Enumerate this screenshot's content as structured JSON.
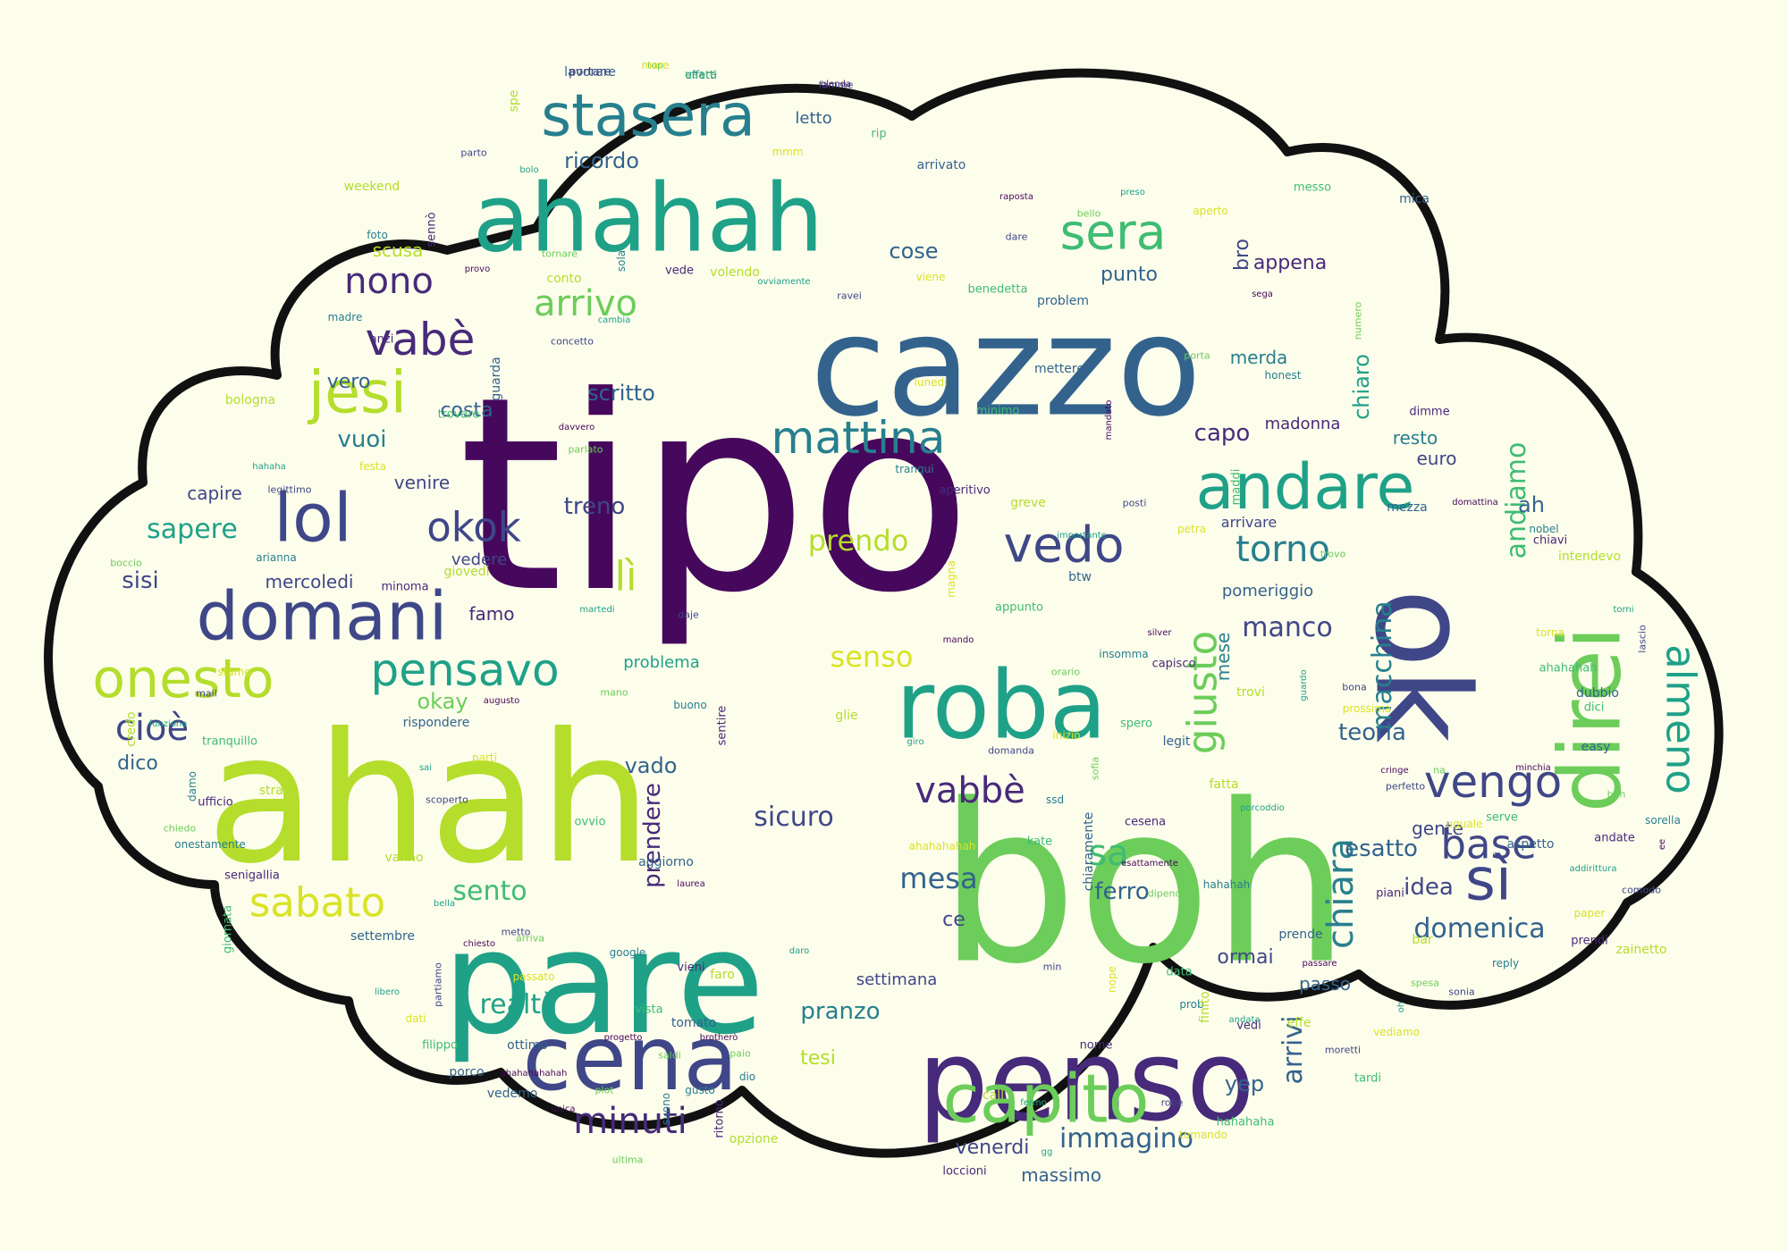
{
  "cloud": {
    "fill": "#fdfdec",
    "outline": "#111111"
  },
  "palette": {
    "p1": "#46085c",
    "p2": "#472a7a",
    "p3": "#3f4788",
    "p4": "#33638d",
    "p5": "#277f8e",
    "p6": "#1fa188",
    "p7": "#3fbc73",
    "p8": "#6ccd5a",
    "p9": "#b4dd2c",
    "p10": "#d9e326"
  },
  "words": [
    {
      "t": "tipo",
      "c": "p1"
    },
    {
      "t": "boh",
      "c": "p8"
    },
    {
      "t": "ahah",
      "c": "p9"
    },
    {
      "t": "cazzo",
      "c": "p4"
    },
    {
      "t": "pare",
      "c": "p6"
    },
    {
      "t": "penso",
      "c": "p2"
    },
    {
      "t": "ahahah",
      "c": "p6"
    },
    {
      "t": "ok",
      "c": "p3"
    },
    {
      "t": "roba",
      "c": "p6"
    },
    {
      "t": "direi",
      "c": "p8"
    },
    {
      "t": "cena",
      "c": "p3"
    },
    {
      "t": "capito",
      "c": "p8"
    },
    {
      "t": "domani",
      "c": "p3"
    },
    {
      "t": "stasera",
      "c": "p5"
    },
    {
      "t": "lol",
      "c": "p3"
    },
    {
      "t": "andare",
      "c": "p6"
    },
    {
      "t": "onesto",
      "c": "p9"
    },
    {
      "t": "sì",
      "c": "p3"
    },
    {
      "t": "vengo",
      "c": "p3"
    },
    {
      "t": "mattina",
      "c": "p5"
    },
    {
      "t": "jesi",
      "c": "p9"
    },
    {
      "t": "pensavo",
      "c": "p6"
    },
    {
      "t": "sera",
      "c": "p7"
    },
    {
      "t": "vedo",
      "c": "p3"
    },
    {
      "t": "vabè",
      "c": "p2"
    },
    {
      "t": "base",
      "c": "p3"
    },
    {
      "t": "okok",
      "c": "p3"
    },
    {
      "t": "minuti",
      "c": "p2"
    },
    {
      "t": "sabato",
      "c": "p10"
    },
    {
      "t": "arrivo",
      "c": "p8"
    },
    {
      "t": "torno",
      "c": "p5"
    },
    {
      "t": "nono",
      "c": "p2"
    },
    {
      "t": "giusto",
      "c": "p8"
    },
    {
      "t": "almeno",
      "c": "p6"
    },
    {
      "t": "lì",
      "c": "p9"
    },
    {
      "t": "vabbè",
      "c": "p2"
    },
    {
      "t": "cioè",
      "c": "p3"
    },
    {
      "t": "sapere",
      "c": "p6"
    },
    {
      "t": "senso",
      "c": "p10"
    },
    {
      "t": "realtà",
      "c": "p6"
    },
    {
      "t": "sa",
      "c": "p7"
    },
    {
      "t": "prendo",
      "c": "p9"
    },
    {
      "t": "mesa",
      "c": "p4"
    },
    {
      "t": "immagino",
      "c": "p4"
    },
    {
      "t": "domenica",
      "c": "p4"
    },
    {
      "t": "chiara",
      "c": "p5"
    },
    {
      "t": "manco",
      "c": "p3"
    },
    {
      "t": "ahahah2",
      "c": "p4"
    },
    {
      "t": "sento",
      "c": "p7"
    },
    {
      "t": "sicuro",
      "c": "p3"
    },
    {
      "t": "macchina",
      "c": "p5"
    },
    {
      "t": "andiamo",
      "c": "p7"
    },
    {
      "t": "vuoi",
      "c": "p5"
    },
    {
      "t": "treno",
      "c": "p3"
    },
    {
      "t": "idea",
      "c": "p3"
    },
    {
      "t": "esatto",
      "c": "p4"
    },
    {
      "t": "prendere",
      "c": "p2"
    },
    {
      "t": "teoria",
      "c": "p4"
    },
    {
      "t": "capo",
      "c": "p2"
    },
    {
      "t": "venerdi",
      "c": "p3"
    },
    {
      "t": "scritto",
      "c": "p4"
    },
    {
      "t": "arrivi",
      "c": "p4"
    },
    {
      "t": "ricordo",
      "c": "p4"
    },
    {
      "t": "tesi",
      "c": "p9"
    },
    {
      "t": "pranzo",
      "c": "p5"
    },
    {
      "t": "okay",
      "c": "p8"
    },
    {
      "t": "ferro",
      "c": "p4"
    },
    {
      "t": "yep",
      "c": "p4"
    },
    {
      "t": "sisi",
      "c": "p3"
    },
    {
      "t": "vado",
      "c": "p4"
    },
    {
      "t": "punto",
      "c": "p4"
    },
    {
      "t": "vero",
      "c": "p4"
    },
    {
      "t": "appena",
      "c": "p2"
    },
    {
      "t": "cose",
      "c": "p4"
    },
    {
      "t": "costa",
      "c": "p4"
    },
    {
      "t": "mese",
      "c": "p5"
    },
    {
      "t": "ormai",
      "c": "p3"
    },
    {
      "t": "ah",
      "c": "p4"
    },
    {
      "t": "settimana",
      "c": "p3"
    },
    {
      "t": "massimo",
      "c": "p4"
    },
    {
      "t": "scusa",
      "c": "p9"
    },
    {
      "t": "dico",
      "c": "p4"
    },
    {
      "t": "mercoledi",
      "c": "p3"
    },
    {
      "t": "venire",
      "c": "p3"
    },
    {
      "t": "capire",
      "c": "p3"
    },
    {
      "t": "famo",
      "c": "p2"
    },
    {
      "t": "problema",
      "c": "p6"
    },
    {
      "t": "chiaro",
      "c": "p6"
    },
    {
      "t": "letto",
      "c": "p4"
    },
    {
      "t": "bro",
      "c": "p3"
    },
    {
      "t": "madonna",
      "c": "p2"
    },
    {
      "t": "merda",
      "c": "p5"
    },
    {
      "t": "vedere",
      "c": "p3"
    },
    {
      "t": "resto",
      "c": "p5"
    },
    {
      "t": "euro",
      "c": "p3"
    },
    {
      "t": "gente",
      "c": "p3"
    },
    {
      "t": "passo",
      "c": "p4"
    },
    {
      "t": "ce",
      "c": "p3"
    },
    {
      "t": "pomeriggio",
      "c": "p4"
    },
    {
      "t": "arrivare",
      "c": "p3"
    }
  ],
  "small_words": [
    "glenda",
    "top",
    "effetti",
    "portare",
    "spe",
    "bolo",
    "parto",
    "mmm",
    "rip",
    "arrivato",
    "raposta",
    "bello",
    "foto",
    "sennò",
    "weekend",
    "preso",
    "dare",
    "aperto",
    "messo",
    "mica",
    "provo",
    "tornare",
    "sola",
    "vede",
    "volendo",
    "ovviamente",
    "ravei",
    "viene",
    "benedetta",
    "problem",
    "sega",
    "numero",
    "madre",
    "anzi",
    "conto",
    "cambia",
    "concetto",
    "lunedi",
    "minimo",
    "mettere",
    "mandato",
    "porta",
    "honest",
    "dimme",
    "bologna",
    "hahaha",
    "legittimo",
    "festa",
    "trovare",
    "guarda",
    "davvero",
    "parlato",
    "tranqui",
    "aperitivo",
    "greve",
    "importante",
    "posti",
    "petra",
    "maddi",
    "mezza",
    "domattina",
    "boccio",
    "arianna",
    "minoma",
    "giovedi",
    "martedi",
    "daje",
    "magna",
    "appunto",
    "btw",
    "silver",
    "trovo",
    "nobel",
    "chiavi",
    "intendevo",
    "torni",
    "lascio",
    "torna",
    "ahahahah",
    "dubbio",
    "mando",
    "orario",
    "insomma",
    "capisco",
    "trovi",
    "guardo",
    "bona",
    "prossima",
    "dici",
    "easy",
    "minchia",
    "beh",
    "sorella",
    "andate",
    "credo",
    "funziona",
    "mail",
    "stamo",
    "tranquillo",
    "rispondere",
    "augusto",
    "mano",
    "buono",
    "sentire",
    "glie",
    "giro",
    "domanda",
    "inizio",
    "spero",
    "legit",
    "cringe",
    "na",
    "damo",
    "ufficio",
    "strano",
    "sai",
    "scoperto",
    "parti",
    "ovvio",
    "aggiorno",
    "laurea",
    "sofia",
    "ssd",
    "cesena",
    "fatta",
    "porcoddio",
    "perfetto",
    "uguale",
    "serve",
    "aspetto",
    "ee",
    "chiedo",
    "onestamente",
    "senigallia",
    "vanno",
    "bella",
    "metto",
    "ahahahahah",
    "kate",
    "chiaramente",
    "esattamente",
    "dipende",
    "hahahah",
    "piani",
    "bar",
    "addirittura",
    "comodo",
    "paper",
    "giornata",
    "settembre",
    "chiesto",
    "arriva",
    "google",
    "vieni",
    "faro",
    "daro",
    "min",
    "nope",
    "data",
    "prende",
    "passare",
    "spesa",
    "reply",
    "prendi",
    "zainetto",
    "libero",
    "partiamo",
    "passato",
    "vista",
    "tomato",
    "brotherò",
    "paio",
    "prob",
    "vedi",
    "effe",
    "oh",
    "sonia",
    "dati",
    "filippo",
    "ottimo",
    "progetto",
    "saldi",
    "dio",
    "nome",
    "finito",
    "andata",
    "moretti",
    "vediamo",
    "tardi",
    "porco",
    "ahahahahahah",
    "plot",
    "gusto",
    "ritorno",
    "opzione",
    "fermo",
    "robe",
    "tomando",
    "hahahaha",
    "vedemo",
    "unica",
    "ultima",
    "suono",
    "loccioni",
    "call",
    "gg",
    "famme",
    "mare",
    "usare",
    "lavorare"
  ]
}
